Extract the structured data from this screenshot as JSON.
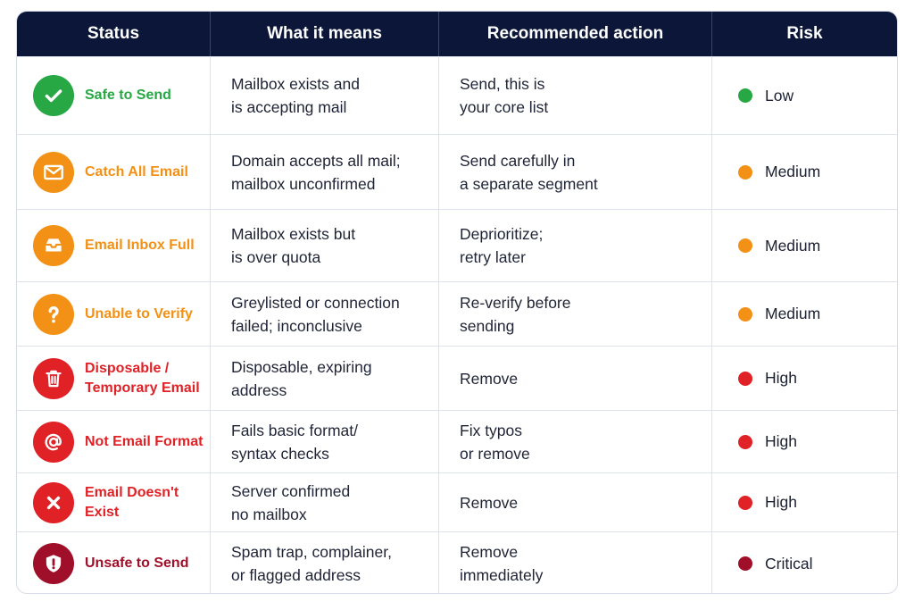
{
  "colors": {
    "header_bg": "#0b1638",
    "green": "#27a844",
    "orange": "#f29115",
    "red": "#e02227",
    "crimson": "#a00f2a"
  },
  "header": {
    "status": "Status",
    "meaning": "What it means",
    "action": "Recommended action",
    "risk": "Risk"
  },
  "rows": [
    {
      "status": "Safe to Send",
      "icon": "check-icon",
      "meaning": [
        "Mailbox exists and",
        "is accepting mail"
      ],
      "action": [
        "Send, this is",
        "your core list"
      ],
      "risk": "Low",
      "color": "green"
    },
    {
      "status": "Catch All Email",
      "icon": "envelope-icon",
      "meaning": [
        "Domain accepts all mail;",
        "mailbox unconfirmed"
      ],
      "action": [
        "Send carefully in",
        "a separate segment"
      ],
      "risk": "Medium",
      "color": "orange"
    },
    {
      "status": "Email Inbox Full",
      "icon": "inbox-tray-icon",
      "meaning": [
        "Mailbox exists but",
        "is over quota"
      ],
      "action": [
        "Deprioritize;",
        "retry later"
      ],
      "risk": "Medium",
      "color": "orange"
    },
    {
      "status": "Unable to Verify",
      "icon": "question-icon",
      "meaning": [
        "Greylisted or connection",
        "failed; inconclusive"
      ],
      "action": [
        "Re-verify before",
        "sending"
      ],
      "risk": "Medium",
      "color": "orange"
    },
    {
      "status": [
        "Disposable /",
        "Temporary Email"
      ],
      "icon": "trash-icon",
      "meaning": [
        "Disposable, expiring",
        "address"
      ],
      "action": [
        "Remove"
      ],
      "risk": "High",
      "color": "red"
    },
    {
      "status": "Not Email Format",
      "icon": "at-sign-icon",
      "meaning": [
        "Fails basic format/",
        "syntax checks"
      ],
      "action": [
        "Fix typos",
        "or remove"
      ],
      "risk": "High",
      "color": "red"
    },
    {
      "status": "Email Doesn't Exist",
      "icon": "x-icon",
      "meaning": [
        "Server confirmed",
        "no mailbox"
      ],
      "action": [
        "Remove"
      ],
      "risk": "High",
      "color": "red"
    },
    {
      "status": "Unsafe to Send",
      "icon": "shield-alert-icon",
      "meaning": [
        "Spam trap, complainer,",
        "or flagged address"
      ],
      "action": [
        "Remove",
        "immediately"
      ],
      "risk": "Critical",
      "color": "crimson"
    }
  ]
}
